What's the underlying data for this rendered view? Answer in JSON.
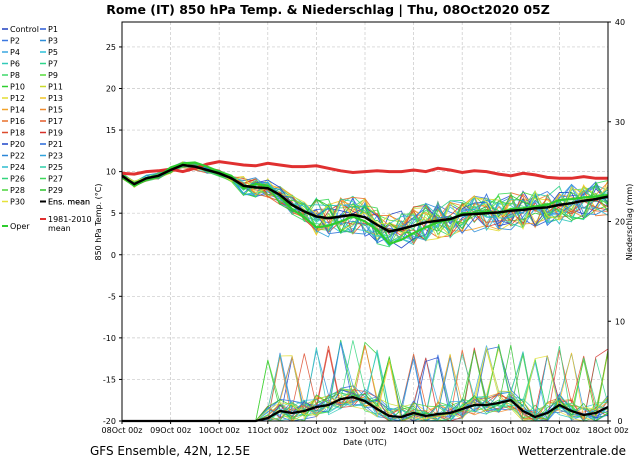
{
  "chart_data": {
    "type": "line",
    "title": "Rome  (IT)  850 hPa Temp. & Niederschlag | Thu, 08Oct2020 05Z",
    "xlabel": "Date (UTC)",
    "ylabel_left": "850 hPa Temp. (°C)",
    "ylabel_right": "Niederschlag (mm)",
    "x_ticks": [
      "08Oct 00z",
      "09Oct 00z",
      "10Oct 00z",
      "11Oct 00z",
      "12Oct 00z",
      "13Oct 00z",
      "14Oct 00z",
      "15Oct 00z",
      "16Oct 00z",
      "17Oct 00z",
      "18Oct 00z"
    ],
    "y_left_ticks": [
      -20,
      -15,
      -10,
      -5,
      0,
      5,
      10,
      15,
      20,
      25
    ],
    "y_left_range": [
      -20,
      28
    ],
    "y_right_ticks": [
      0,
      10,
      20,
      30,
      40
    ],
    "y_right_range": [
      0,
      40
    ],
    "x_range_days": [
      0,
      10
    ],
    "grid": true,
    "legend_placement": "left",
    "footer_left": "GFS Ensemble, 42N, 12.5E",
    "footer_right": "Wetterzentrale.de",
    "x_days": [
      0,
      0.25,
      0.5,
      0.75,
      1,
      1.25,
      1.5,
      1.75,
      2,
      2.25,
      2.5,
      2.75,
      3,
      3.25,
      3.5,
      3.75,
      4,
      4.25,
      4.5,
      4.75,
      5,
      5.25,
      5.5,
      5.75,
      6,
      6.25,
      6.5,
      6.75,
      7,
      7.25,
      7.5,
      7.75,
      8,
      8.25,
      8.5,
      8.75,
      9,
      9.25,
      9.5,
      9.75,
      10
    ],
    "clim_mean": [
      9.8,
      9.7,
      10.0,
      10.1,
      10.3,
      10.0,
      10.4,
      10.9,
      11.2,
      11.0,
      10.8,
      10.7,
      11.0,
      10.8,
      10.6,
      10.6,
      10.7,
      10.4,
      10.1,
      9.9,
      10.0,
      10.1,
      10.0,
      10.0,
      10.2,
      10.0,
      10.4,
      10.2,
      9.9,
      10.1,
      10.0,
      9.7,
      9.5,
      9.8,
      9.6,
      9.3,
      9.2,
      9.2,
      9.4,
      9.2,
      9.2
    ],
    "ens_mean": [
      9.5,
      8.5,
      9.2,
      9.5,
      10.2,
      10.8,
      10.6,
      10.2,
      9.8,
      9.2,
      8.3,
      8.1,
      8.0,
      7.2,
      6.0,
      5.2,
      4.6,
      4.4,
      4.6,
      4.8,
      4.5,
      3.6,
      2.8,
      3.1,
      3.5,
      3.9,
      4.1,
      4.3,
      4.8,
      4.9,
      5.0,
      5.1,
      5.3,
      5.4,
      5.6,
      5.7,
      6.0,
      6.2,
      6.5,
      6.7,
      7.0
    ],
    "oper": [
      9.3,
      8.3,
      9.0,
      9.4,
      10.5,
      11.0,
      11.1,
      10.6,
      10.0,
      9.5,
      8.0,
      8.5,
      8.3,
      7.0,
      5.5,
      4.5,
      3.3,
      3.5,
      4.0,
      4.6,
      4.0,
      3.0,
      1.3,
      1.8,
      2.6,
      3.3,
      3.9,
      4.2,
      5.0,
      5.0,
      5.2,
      5.0,
      5.5,
      5.6,
      5.8,
      6.0,
      6.6,
      6.7,
      6.9,
      7.0,
      7.2
    ],
    "precip_ens_mean": [
      0,
      0,
      0,
      0,
      0,
      0,
      0,
      0,
      0,
      0,
      0,
      0,
      0.3,
      1.0,
      0.8,
      1.0,
      1.4,
      1.6,
      2.2,
      2.4,
      2.0,
      1.2,
      0.5,
      0.4,
      0.8,
      0.5,
      0.7,
      0.8,
      1.2,
      1.6,
      1.6,
      1.8,
      2.1,
      1.0,
      0.4,
      0.8,
      1.6,
      1.0,
      0.6,
      0.8,
      1.4
    ],
    "members": [
      {
        "name": "Control",
        "color": "#1f3fbf"
      },
      {
        "name": "P1",
        "color": "#2b5bd6"
      },
      {
        "name": "P2",
        "color": "#3c78e0"
      },
      {
        "name": "P3",
        "color": "#2f8fd8"
      },
      {
        "name": "P4",
        "color": "#3aa7e0"
      },
      {
        "name": "P5",
        "color": "#2cc0d8"
      },
      {
        "name": "P6",
        "color": "#32c9b8"
      },
      {
        "name": "P7",
        "color": "#2fd68a"
      },
      {
        "name": "P8",
        "color": "#3fd96b"
      },
      {
        "name": "P9",
        "color": "#55dc3a"
      },
      {
        "name": "P10",
        "color": "#2ecf2e"
      },
      {
        "name": "P11",
        "color": "#c9d92a"
      },
      {
        "name": "P12",
        "color": "#e3dc30"
      },
      {
        "name": "P13",
        "color": "#f0c425"
      },
      {
        "name": "P14",
        "color": "#f2a22a"
      },
      {
        "name": "P15",
        "color": "#ef8a2e"
      },
      {
        "name": "P16",
        "color": "#e9702a"
      },
      {
        "name": "P17",
        "color": "#e35a2a"
      },
      {
        "name": "P18",
        "color": "#dd4a2c"
      },
      {
        "name": "P19",
        "color": "#d6302a"
      },
      {
        "name": "P20",
        "color": "#1e44c8"
      },
      {
        "name": "P21",
        "color": "#2769d8"
      },
      {
        "name": "P22",
        "color": "#2b86d8"
      },
      {
        "name": "P23",
        "color": "#30a3dc"
      },
      {
        "name": "P24",
        "color": "#2dbccf"
      },
      {
        "name": "P25",
        "color": "#2ecfa9"
      },
      {
        "name": "P26",
        "color": "#33d57d"
      },
      {
        "name": "P27",
        "color": "#3ed85a"
      },
      {
        "name": "P28",
        "color": "#4ad43a"
      },
      {
        "name": "P29",
        "color": "#2cc22c"
      },
      {
        "name": "P30",
        "color": "#e6e23a"
      },
      {
        "name": "Ens. mean",
        "color": "#000000"
      },
      {
        "name": "1981-2010 mean",
        "color": "#e03030"
      },
      {
        "name": "Oper",
        "color": "#2ecc2e"
      }
    ]
  }
}
